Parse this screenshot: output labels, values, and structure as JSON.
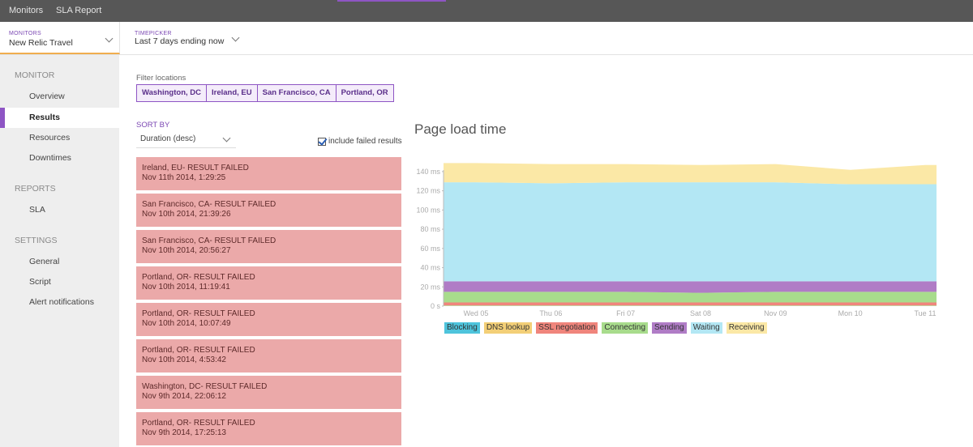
{
  "topnav": {
    "items": [
      "Monitors",
      "SLA Report"
    ]
  },
  "header": {
    "monitors_label": "MONITORS",
    "monitor_value": "New Relic Travel",
    "timepicker_label": "TIMEPICKER",
    "timepicker_value": "Last 7 days ending now"
  },
  "sidebar": {
    "sections": [
      {
        "title": "MONITOR",
        "items": [
          "Overview",
          "Results",
          "Resources",
          "Downtimes"
        ]
      },
      {
        "title": "REPORTS",
        "items": [
          "SLA"
        ]
      },
      {
        "title": "SETTINGS",
        "items": [
          "General",
          "Script",
          "Alert notifications"
        ]
      }
    ],
    "active_item": "Results"
  },
  "filter": {
    "label": "Filter locations",
    "locations": [
      "Washington, DC",
      "Ireland, EU",
      "San Francisco, CA",
      "Portland, OR"
    ]
  },
  "sort": {
    "label": "SORT BY",
    "value": "Duration (desc)",
    "include_failed_label": "include failed results",
    "include_failed_checked": true
  },
  "results": [
    {
      "title": "Ireland, EU- RESULT FAILED",
      "time": "Nov 11th 2014, 1:29:25"
    },
    {
      "title": "San Francisco, CA- RESULT FAILED",
      "time": "Nov 10th 2014, 21:39:26"
    },
    {
      "title": "San Francisco, CA- RESULT FAILED",
      "time": "Nov 10th 2014, 20:56:27"
    },
    {
      "title": "Portland, OR- RESULT FAILED",
      "time": "Nov 10th 2014, 11:19:41"
    },
    {
      "title": "Portland, OR- RESULT FAILED",
      "time": "Nov 10th 2014, 10:07:49"
    },
    {
      "title": "Portland, OR- RESULT FAILED",
      "time": "Nov 10th 2014, 4:53:42"
    },
    {
      "title": "Washington, DC- RESULT FAILED",
      "time": "Nov 9th 2014, 22:06:12"
    },
    {
      "title": "Portland, OR- RESULT FAILED",
      "time": "Nov 9th 2014, 17:25:13"
    }
  ],
  "chart_data": {
    "type": "area",
    "title": "Page load time",
    "xlabel": "",
    "ylabel": "",
    "stacked": true,
    "x": [
      "Wed 05",
      "Thu 06",
      "Fri 07",
      "Sat 08",
      "Nov 09",
      "Mon 10",
      "Tue 11"
    ],
    "x_ticks": [
      "Wed 05",
      "Thu 06",
      "Fri 07",
      "Sat 08",
      "Nov 09",
      "Mon 10",
      "Tue 11"
    ],
    "y_ticks": [
      "0 s",
      "20 ms",
      "40 ms",
      "60 ms",
      "80 ms",
      "100 ms",
      "120 ms",
      "140 ms"
    ],
    "ylim": [
      0,
      150
    ],
    "series": [
      {
        "name": "Blocking",
        "color": "#4ec4dc",
        "values": [
          0.3,
          0.3,
          0.3,
          0.3,
          0.3,
          0.3,
          0.3
        ]
      },
      {
        "name": "DNS lookup",
        "color": "#f3cf77",
        "values": [
          0.5,
          0.5,
          0.5,
          0.5,
          0.5,
          0.5,
          0.5
        ]
      },
      {
        "name": "SSL negotiation",
        "color": "#f0857c",
        "values": [
          3,
          3,
          3,
          3,
          3,
          3,
          3
        ]
      },
      {
        "name": "Connecting",
        "color": "#a8dc8c",
        "values": [
          11,
          11,
          11,
          10,
          11,
          11,
          11
        ]
      },
      {
        "name": "Sending",
        "color": "#b07cc6",
        "values": [
          11,
          11,
          11,
          12,
          11,
          11,
          11
        ]
      },
      {
        "name": "Waiting",
        "color": "#b3e7f4",
        "values": [
          103,
          102,
          103,
          103,
          103,
          101,
          101
        ]
      },
      {
        "name": "Receiving",
        "color": "#fbe8a6",
        "values": [
          20,
          20,
          19,
          18,
          19,
          15,
          20
        ]
      }
    ],
    "grid": false,
    "legend_position": "bottom-left"
  }
}
